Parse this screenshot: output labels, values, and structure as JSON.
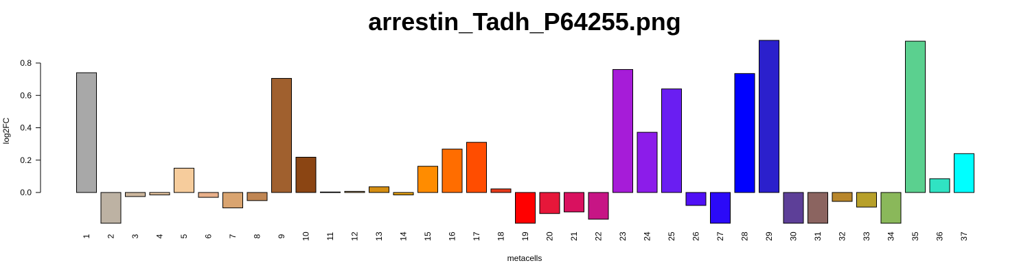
{
  "chart_data": {
    "type": "bar",
    "title": "arrestin_Tadh_P64255.png",
    "xlabel": "metacells",
    "ylabel": "log2FC",
    "ylim": [
      -0.19,
      0.94
    ],
    "yticks": [
      "0.0",
      "0.2",
      "0.4",
      "0.6",
      "0.8"
    ],
    "grid": false,
    "categories": [
      "1",
      "2",
      "3",
      "4",
      "5",
      "6",
      "7",
      "8",
      "9",
      "10",
      "11",
      "12",
      "13",
      "14",
      "15",
      "16",
      "17",
      "18",
      "19",
      "20",
      "21",
      "22",
      "23",
      "24",
      "25",
      "26",
      "27",
      "28",
      "29",
      "30",
      "31",
      "32",
      "33",
      "34",
      "35",
      "36",
      "37"
    ],
    "values": [
      0.74,
      -0.19,
      -0.025,
      -0.015,
      0.15,
      -0.03,
      -0.095,
      -0.05,
      0.705,
      0.218,
      0.003,
      0.007,
      0.035,
      -0.015,
      0.162,
      0.268,
      0.31,
      0.022,
      -0.19,
      -0.13,
      -0.12,
      -0.165,
      0.76,
      0.372,
      0.64,
      -0.08,
      -0.19,
      0.735,
      0.94,
      -0.19,
      -0.19,
      -0.055,
      -0.09,
      -0.19,
      0.935,
      0.085,
      0.24
    ],
    "colors": [
      "#A8A8A8",
      "#BDB2A3",
      "#CDB79E",
      "#E3C39E",
      "#F6CC9C",
      "#E8B08A",
      "#D9A470",
      "#C08653",
      "#A0602E",
      "#8B4513",
      "#E6E6E6",
      "#BE9A65",
      "#D58E12",
      "#E2A015",
      "#FF8C00",
      "#FF6D00",
      "#FF4D00",
      "#E63A1A",
      "#FF0000",
      "#E6173A",
      "#D9115F",
      "#C71585",
      "#A61CD8",
      "#8C1CEA",
      "#6A1EF2",
      "#5010F5",
      "#2B0AF8",
      "#0000FF",
      "#2B20CC",
      "#5D3F98",
      "#8B6460",
      "#B8862B",
      "#B7A02A",
      "#8AB85A",
      "#5BD08F",
      "#30E3C3",
      "#00FFFF"
    ]
  }
}
